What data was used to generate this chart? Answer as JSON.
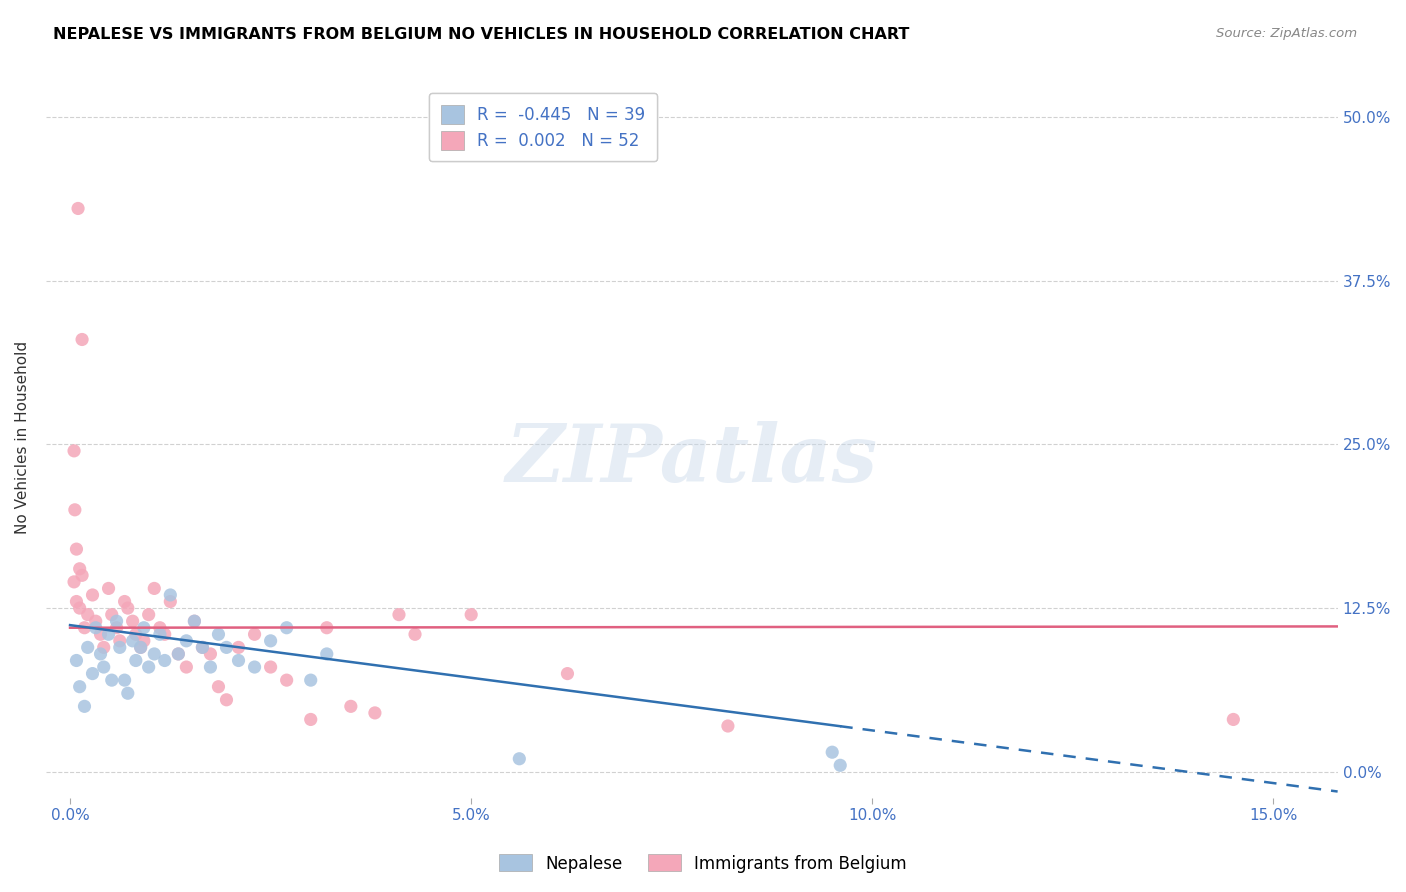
{
  "title": "NEPALESE VS IMMIGRANTS FROM BELGIUM NO VEHICLES IN HOUSEHOLD CORRELATION CHART",
  "source": "Source: ZipAtlas.com",
  "xlabel_tick_vals": [
    0.0,
    5.0,
    10.0,
    15.0
  ],
  "ylabel_tick_vals": [
    0.0,
    12.5,
    25.0,
    37.5,
    50.0
  ],
  "xlim": [
    -0.3,
    15.8
  ],
  "ylim": [
    -2.0,
    53.0
  ],
  "watermark_text": "ZIPatlas",
  "nepalese_color": "#a8c4e0",
  "belgium_color": "#f4a7b9",
  "nepalese_R": -0.445,
  "nepalese_N": 39,
  "belgium_R": 0.002,
  "belgium_N": 52,
  "nepalese_line_x0": 0.0,
  "nepalese_line_y0": 11.2,
  "nepalese_line_x1": 15.8,
  "nepalese_line_y1": -1.5,
  "belgium_line_x0": 0.0,
  "belgium_line_y0": 11.0,
  "belgium_line_x1": 15.8,
  "belgium_line_y1": 11.1,
  "nepalese_line_color": "#3070b0",
  "belgium_line_color": "#e06080",
  "background_color": "#ffffff",
  "grid_color": "#cccccc",
  "title_color": "#000000",
  "tick_color": "#4472c4",
  "ylabel": "No Vehicles in Household",
  "legend_nepalese_label": "Nepalese",
  "legend_belgium_label": "Immigrants from Belgium",
  "nepalese_x": [
    0.08,
    0.12,
    0.18,
    0.22,
    0.28,
    0.32,
    0.38,
    0.42,
    0.48,
    0.52,
    0.58,
    0.62,
    0.68,
    0.72,
    0.78,
    0.82,
    0.88,
    0.92,
    0.98,
    1.05,
    1.12,
    1.18,
    1.25,
    1.35,
    1.45,
    1.55,
    1.65,
    1.75,
    1.85,
    1.95,
    2.1,
    2.3,
    2.5,
    2.7,
    3.0,
    3.2,
    5.6,
    9.5,
    9.6
  ],
  "nepalese_y": [
    8.5,
    6.5,
    5.0,
    9.5,
    7.5,
    11.0,
    9.0,
    8.0,
    10.5,
    7.0,
    11.5,
    9.5,
    7.0,
    6.0,
    10.0,
    8.5,
    9.5,
    11.0,
    8.0,
    9.0,
    10.5,
    8.5,
    13.5,
    9.0,
    10.0,
    11.5,
    9.5,
    8.0,
    10.5,
    9.5,
    8.5,
    8.0,
    10.0,
    11.0,
    7.0,
    9.0,
    1.0,
    1.5,
    0.5
  ],
  "belgium_x": [
    0.05,
    0.08,
    0.12,
    0.15,
    0.18,
    0.22,
    0.28,
    0.32,
    0.38,
    0.42,
    0.48,
    0.52,
    0.58,
    0.62,
    0.68,
    0.72,
    0.78,
    0.82,
    0.88,
    0.92,
    0.98,
    1.05,
    1.12,
    1.18,
    1.25,
    1.35,
    1.45,
    1.55,
    1.65,
    1.75,
    1.85,
    1.95,
    2.1,
    2.3,
    2.5,
    2.7,
    3.0,
    3.2,
    3.5,
    3.8,
    4.1,
    4.3,
    5.0,
    6.2,
    8.2,
    14.5,
    0.05,
    0.08,
    0.12,
    0.06,
    0.1,
    0.15
  ],
  "belgium_y": [
    14.5,
    13.0,
    12.5,
    15.0,
    11.0,
    12.0,
    13.5,
    11.5,
    10.5,
    9.5,
    14.0,
    12.0,
    11.0,
    10.0,
    13.0,
    12.5,
    11.5,
    10.5,
    9.5,
    10.0,
    12.0,
    14.0,
    11.0,
    10.5,
    13.0,
    9.0,
    8.0,
    11.5,
    9.5,
    9.0,
    6.5,
    5.5,
    9.5,
    10.5,
    8.0,
    7.0,
    4.0,
    11.0,
    5.0,
    4.5,
    12.0,
    10.5,
    12.0,
    7.5,
    3.5,
    4.0,
    24.5,
    17.0,
    15.5,
    20.0,
    43.0,
    33.0
  ]
}
